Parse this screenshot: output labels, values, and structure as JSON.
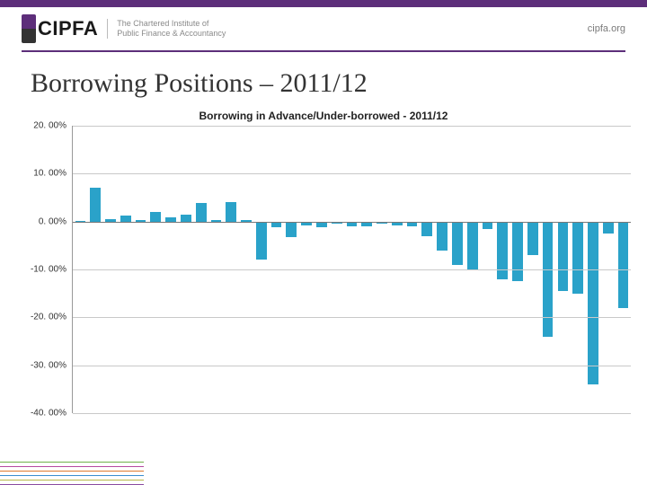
{
  "brand": {
    "name": "CIPFA",
    "sub1": "The Chartered Institute of",
    "sub2": "Public Finance & Accountancy"
  },
  "url": "cipfa.org",
  "title": "Borrowing Positions – 2011/12",
  "chart": {
    "subtitle": "Borrowing in Advance/Under-borrowed - 2011/12",
    "type": "bar",
    "ylabel_fontsize": 10,
    "ylim": [
      -40,
      20
    ],
    "ytick_step": 10,
    "yticks": [
      20,
      10,
      0,
      -10,
      -20,
      -30,
      -40
    ],
    "ytick_labels": [
      "20. 00%",
      "10. 00%",
      "0. 00%",
      "-10. 00%",
      "-20. 00%",
      "-30. 00%",
      "-40. 00%"
    ],
    "grid_color": "#c9c9c9",
    "axis_color": "#999999",
    "bar_color": "#2aa2c9",
    "background_color": "#ffffff",
    "bar_width": 0.7,
    "values": [
      0.2,
      7,
      0.5,
      1.2,
      0.3,
      2,
      0.8,
      1.5,
      3.8,
      0.3,
      4,
      0.4,
      -8,
      -1.2,
      -3.2,
      -0.8,
      -1.2,
      -0.5,
      -1,
      -1,
      -0.5,
      -0.8,
      -1,
      -3,
      -6,
      -9,
      -10,
      -1.5,
      -12,
      -12.5,
      -7,
      -24,
      -14.5,
      -15,
      -34,
      -2.5,
      -18
    ]
  },
  "footer_line_colors": [
    "#6fb24a",
    "#b54aa0",
    "#e07a2e",
    "#3a8ecf",
    "#b8b84a",
    "#8a4aa0"
  ]
}
